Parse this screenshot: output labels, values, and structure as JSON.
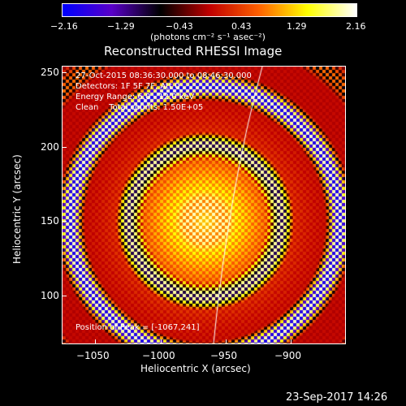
{
  "colorbar": {
    "ticks": [
      "−2.16",
      "−1.29",
      "−0.43",
      "0.43",
      "1.29",
      "2.16"
    ],
    "unit_label": "(photons cm⁻² s⁻¹ asec⁻²)",
    "colors": [
      "#0000ff",
      "#5a00c8",
      "#000000",
      "#c00000",
      "#ff6000",
      "#ffff00",
      "#ffffff"
    ]
  },
  "plot": {
    "title": "Reconstructed RHESSI Image",
    "time_range": "27-Oct-2015 08:36:30.000 to 08:46:30.000",
    "detectors": "Detectors: 1F 5F 7F, Att 0",
    "energy": "Energy Range: 6.0 - 12.0 keV",
    "method": "Clean    Total counts: 1.50E+05",
    "peak": "Position of Peak = [-1067,241]",
    "x_label": "Heliocentric X (arcsec)",
    "y_label": "Heliocentric Y (arcsec)",
    "x_ticks": [
      "−1050",
      "−1000",
      "−950",
      "−900"
    ],
    "y_ticks": [
      "250",
      "200",
      "150",
      "100"
    ]
  },
  "footer": {
    "date": "23-Sep-2017 14:26"
  }
}
